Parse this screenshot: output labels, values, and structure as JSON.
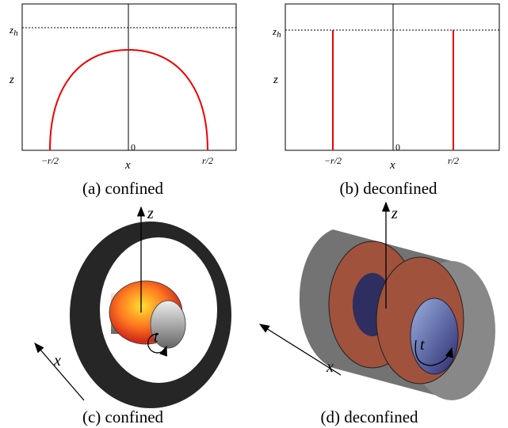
{
  "panels": [
    {
      "caption": "(a) confined",
      "zh": {
        "main": "z",
        "sub": "h"
      },
      "z": "z",
      "x": "x",
      "origin": "0",
      "left": "−r/2",
      "right": "r/2"
    },
    {
      "caption": "(b) deconfined",
      "zh": {
        "main": "z",
        "sub": "h"
      },
      "z": "z",
      "x": "x",
      "origin": "0",
      "left": "−r/2",
      "right": "r/2"
    },
    {
      "caption": "(c) confined",
      "z": "z",
      "x": "x",
      "t": "t"
    },
    {
      "caption": "(d) deconfined",
      "z": "z",
      "x": "x",
      "t": "t"
    }
  ]
}
